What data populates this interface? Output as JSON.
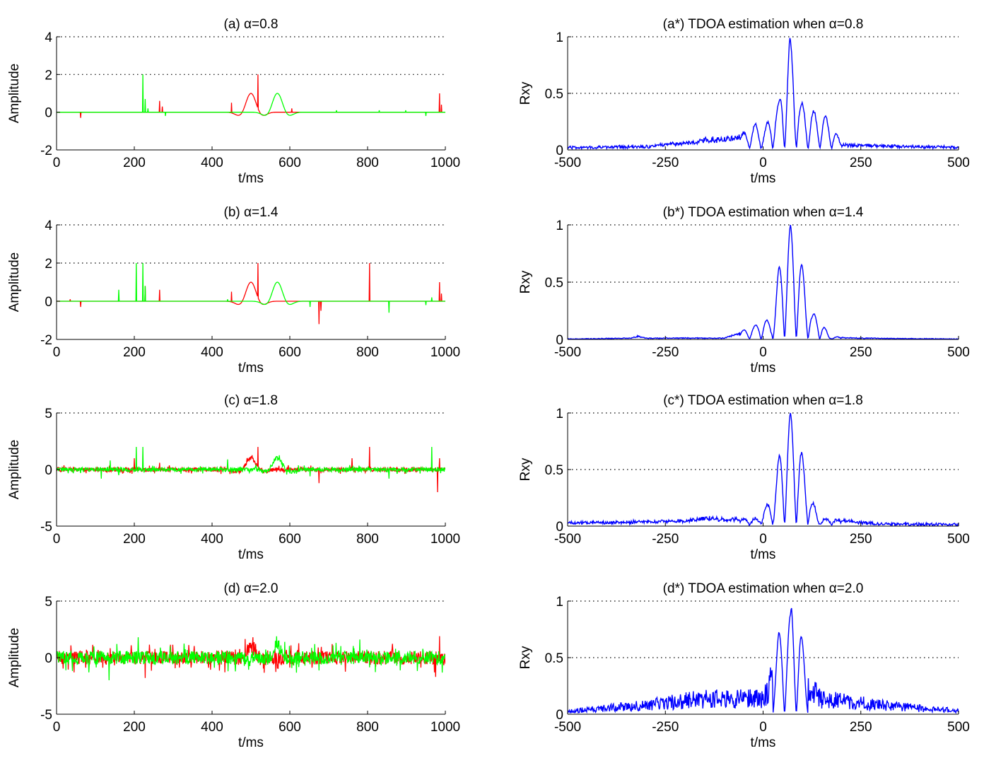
{
  "figure": {
    "colors": {
      "red_trace": "#ff0000",
      "green_trace": "#00ff00",
      "blue_trace": "#0000ff",
      "axes": "#000000",
      "grid": "#000000"
    }
  },
  "chart_data": [
    {
      "type": "line",
      "title": "(a) α=0.8",
      "xlabel": "t/ms",
      "ylabel": "Amplitude",
      "xlim": [
        0,
        1000
      ],
      "ylim": [
        -2,
        4
      ],
      "xticks": [
        0,
        200,
        400,
        600,
        800,
        1000
      ],
      "yticks": [
        -2,
        0,
        2,
        4
      ],
      "grid_y": [
        2,
        4
      ],
      "noise": 0,
      "series": [
        {
          "color": "#ff0000",
          "waveform": {
            "center": 500,
            "amplitude": 1.0,
            "period": 45,
            "width": 28
          },
          "spikes": [
            [
              62,
              -0.3
            ],
            [
              265,
              0.6
            ],
            [
              272,
              0.3
            ],
            [
              450,
              0.5
            ],
            [
              518,
              2.0
            ],
            [
              605,
              0.2
            ],
            [
              985,
              1.0
            ],
            [
              990,
              0.4
            ]
          ]
        },
        {
          "color": "#00ff00",
          "waveform": {
            "center": 568,
            "amplitude": 1.0,
            "period": 45,
            "width": 28
          },
          "spikes": [
            [
              222,
              2.0
            ],
            [
              228,
              0.7
            ],
            [
              235,
              0.2
            ],
            [
              280,
              -0.2
            ],
            [
              720,
              0.1
            ],
            [
              830,
              0.1
            ],
            [
              898,
              0.1
            ],
            [
              950,
              -0.2
            ]
          ]
        }
      ]
    },
    {
      "type": "line",
      "title": "(a*) TDOA estimation when α=0.8",
      "xlabel": "t/ms",
      "ylabel": "Rxy",
      "xlim": [
        -500,
        500
      ],
      "ylim": [
        0,
        1
      ],
      "xticks": [
        -500,
        -250,
        0,
        250,
        500
      ],
      "yticks": [
        0,
        0.5,
        1
      ],
      "grid_y": [
        0.5,
        1
      ],
      "envelope": [
        [
          -500,
          0.01
        ],
        [
          -300,
          0.02
        ],
        [
          -200,
          0.06
        ],
        [
          -150,
          0.09
        ],
        [
          -100,
          0.1
        ],
        [
          -50,
          0.14
        ],
        [
          -20,
          0.22
        ],
        [
          0,
          0.15
        ],
        [
          30,
          0.38
        ],
        [
          40,
          0.4
        ],
        [
          68,
          1.0
        ],
        [
          95,
          0.42
        ],
        [
          110,
          0.36
        ],
        [
          150,
          0.3
        ],
        [
          170,
          0.26
        ],
        [
          200,
          0.04
        ],
        [
          300,
          0.03
        ],
        [
          400,
          0.02
        ],
        [
          500,
          0.01
        ]
      ],
      "oscillation_period": 30,
      "noise": 0.025,
      "series": [
        {
          "color": "#0000ff"
        }
      ]
    },
    {
      "type": "line",
      "title": "(b) α=1.4",
      "xlabel": "t/ms",
      "ylabel": "Amplitude",
      "xlim": [
        0,
        1000
      ],
      "ylim": [
        -2,
        4
      ],
      "xticks": [
        0,
        200,
        400,
        600,
        800,
        1000
      ],
      "yticks": [
        -2,
        0,
        2,
        4
      ],
      "grid_y": [
        2,
        4
      ],
      "noise": 0,
      "series": [
        {
          "color": "#ff0000",
          "waveform": {
            "center": 500,
            "amplitude": 1.0,
            "period": 45,
            "width": 28
          },
          "spikes": [
            [
              35,
              0.1
            ],
            [
              62,
              -0.3
            ],
            [
              228,
              0.8
            ],
            [
              265,
              0.6
            ],
            [
              450,
              0.5
            ],
            [
              518,
              2.0
            ],
            [
              675,
              -1.2
            ],
            [
              680,
              -0.5
            ],
            [
              805,
              2.0
            ],
            [
              985,
              1.0
            ],
            [
              990,
              0.4
            ]
          ]
        },
        {
          "color": "#00ff00",
          "waveform": {
            "center": 568,
            "amplitude": 1.0,
            "period": 45,
            "width": 28
          },
          "spikes": [
            [
              160,
              0.6
            ],
            [
              205,
              2.0
            ],
            [
              222,
              2.0
            ],
            [
              228,
              0.8
            ],
            [
              440,
              0.1
            ],
            [
              652,
              -0.3
            ],
            [
              855,
              -0.6
            ],
            [
              950,
              -0.2
            ],
            [
              965,
              0.2
            ]
          ]
        }
      ]
    },
    {
      "type": "line",
      "title": "(b*) TDOA estimation when α=1.4",
      "xlabel": "t/ms",
      "ylabel": "Rxy",
      "xlim": [
        -500,
        500
      ],
      "ylim": [
        0,
        1
      ],
      "xticks": [
        -500,
        -250,
        0,
        250,
        500
      ],
      "yticks": [
        0,
        0.5,
        1
      ],
      "grid_y": [
        0.5,
        1
      ],
      "envelope": [
        [
          -500,
          0.0
        ],
        [
          -340,
          0.01
        ],
        [
          -320,
          0.03
        ],
        [
          -300,
          0.01
        ],
        [
          -100,
          0.01
        ],
        [
          -20,
          0.12
        ],
        [
          0,
          0.18
        ],
        [
          20,
          0.15
        ],
        [
          40,
          0.62
        ],
        [
          70,
          1.0
        ],
        [
          100,
          0.64
        ],
        [
          125,
          0.22
        ],
        [
          140,
          0.22
        ],
        [
          170,
          0.02
        ],
        [
          250,
          0.01
        ],
        [
          500,
          0.0
        ]
      ],
      "oscillation_period": 30,
      "noise": 0.006,
      "series": [
        {
          "color": "#0000ff"
        }
      ]
    },
    {
      "type": "line",
      "title": "(c) α=1.8",
      "xlabel": "t/ms",
      "ylabel": "Amplitude",
      "xlim": [
        0,
        1000
      ],
      "ylim": [
        -5,
        5
      ],
      "xticks": [
        0,
        200,
        400,
        600,
        800,
        1000
      ],
      "yticks": [
        -5,
        0,
        5
      ],
      "grid_y": [
        5
      ],
      "noise": 0.18,
      "series": [
        {
          "color": "#ff0000",
          "waveform": {
            "center": 500,
            "amplitude": 1.0,
            "period": 45,
            "width": 28
          },
          "spikes": [
            [
              200,
              1.0
            ],
            [
              265,
              0.6
            ],
            [
              518,
              2.0
            ],
            [
              675,
              -1.2
            ],
            [
              760,
              1.0
            ],
            [
              805,
              2.0
            ],
            [
              980,
              -2.0
            ],
            [
              985,
              1.0
            ]
          ]
        },
        {
          "color": "#00ff00",
          "waveform": {
            "center": 568,
            "amplitude": 1.0,
            "period": 45,
            "width": 28
          },
          "spikes": [
            [
              115,
              -0.8
            ],
            [
              138,
              0.8
            ],
            [
              160,
              -0.5
            ],
            [
              205,
              2.0
            ],
            [
              222,
              2.0
            ],
            [
              440,
              0.9
            ],
            [
              652,
              -0.6
            ],
            [
              855,
              -0.8
            ],
            [
              965,
              2.0
            ]
          ]
        }
      ]
    },
    {
      "type": "line",
      "title": "(c*) TDOA estimation when α=1.8",
      "xlabel": "t/ms",
      "ylabel": "Rxy",
      "xlim": [
        -500,
        500
      ],
      "ylim": [
        0,
        1
      ],
      "xticks": [
        -500,
        -250,
        0,
        250,
        500
      ],
      "yticks": [
        0,
        0.5,
        1
      ],
      "grid_y": [
        0.5,
        1
      ],
      "envelope": [
        [
          -500,
          0.02
        ],
        [
          -300,
          0.03
        ],
        [
          -200,
          0.04
        ],
        [
          -150,
          0.07
        ],
        [
          -50,
          0.05
        ],
        [
          -10,
          0.06
        ],
        [
          0,
          0.15
        ],
        [
          20,
          0.2
        ],
        [
          45,
          0.68
        ],
        [
          70,
          1.0
        ],
        [
          95,
          0.7
        ],
        [
          125,
          0.22
        ],
        [
          145,
          0.06
        ],
        [
          200,
          0.04
        ],
        [
          260,
          0.02
        ],
        [
          300,
          0.01
        ],
        [
          500,
          0.0
        ]
      ],
      "oscillation_period": 30,
      "noise": 0.025,
      "series": [
        {
          "color": "#0000ff"
        }
      ]
    },
    {
      "type": "line",
      "title": "(d) α=2.0",
      "xlabel": "t/ms",
      "ylabel": "Amplitude",
      "xlim": [
        0,
        1000
      ],
      "ylim": [
        -5,
        5
      ],
      "xticks": [
        0,
        200,
        400,
        600,
        800,
        1000
      ],
      "yticks": [
        -5,
        0,
        5
      ],
      "grid_y": [
        5
      ],
      "noise": 0.6,
      "series": [
        {
          "color": "#ff0000",
          "waveform": {
            "center": 500,
            "amplitude": 1.0,
            "period": 45,
            "width": 28
          },
          "spikes": [
            [
              228,
              -1.8
            ],
            [
              505,
              1.8
            ],
            [
              975,
              -1.7
            ],
            [
              985,
              1.9
            ]
          ]
        },
        {
          "color": "#00ff00",
          "waveform": {
            "center": 568,
            "amplitude": 1.0,
            "period": 45,
            "width": 28
          },
          "spikes": [
            [
              135,
              -2.0
            ],
            [
              210,
              1.8
            ],
            [
              780,
              1.6
            ]
          ]
        }
      ]
    },
    {
      "type": "line",
      "title": "(d*) TDOA estimation when α=2.0",
      "xlabel": "t/ms",
      "ylabel": "Rxy",
      "xlim": [
        -500,
        500
      ],
      "ylim": [
        0,
        1
      ],
      "xticks": [
        -500,
        -250,
        0,
        250,
        500
      ],
      "yticks": [
        0,
        0.5,
        1
      ],
      "grid_y": [
        0.5,
        1
      ],
      "envelope": [
        [
          -500,
          0.04
        ],
        [
          -400,
          0.08
        ],
        [
          -300,
          0.12
        ],
        [
          -250,
          0.15
        ],
        [
          -150,
          0.2
        ],
        [
          -50,
          0.2
        ],
        [
          0,
          0.2
        ],
        [
          30,
          0.5
        ],
        [
          40,
          0.72
        ],
        [
          70,
          0.88
        ],
        [
          73,
          1.0
        ],
        [
          95,
          0.78
        ],
        [
          110,
          0.4
        ],
        [
          150,
          0.2
        ],
        [
          250,
          0.15
        ],
        [
          350,
          0.1
        ],
        [
          450,
          0.06
        ],
        [
          500,
          0.05
        ]
      ],
      "oscillation_period": 30,
      "noise": 0.0,
      "series": [
        {
          "color": "#0000ff"
        }
      ]
    }
  ]
}
